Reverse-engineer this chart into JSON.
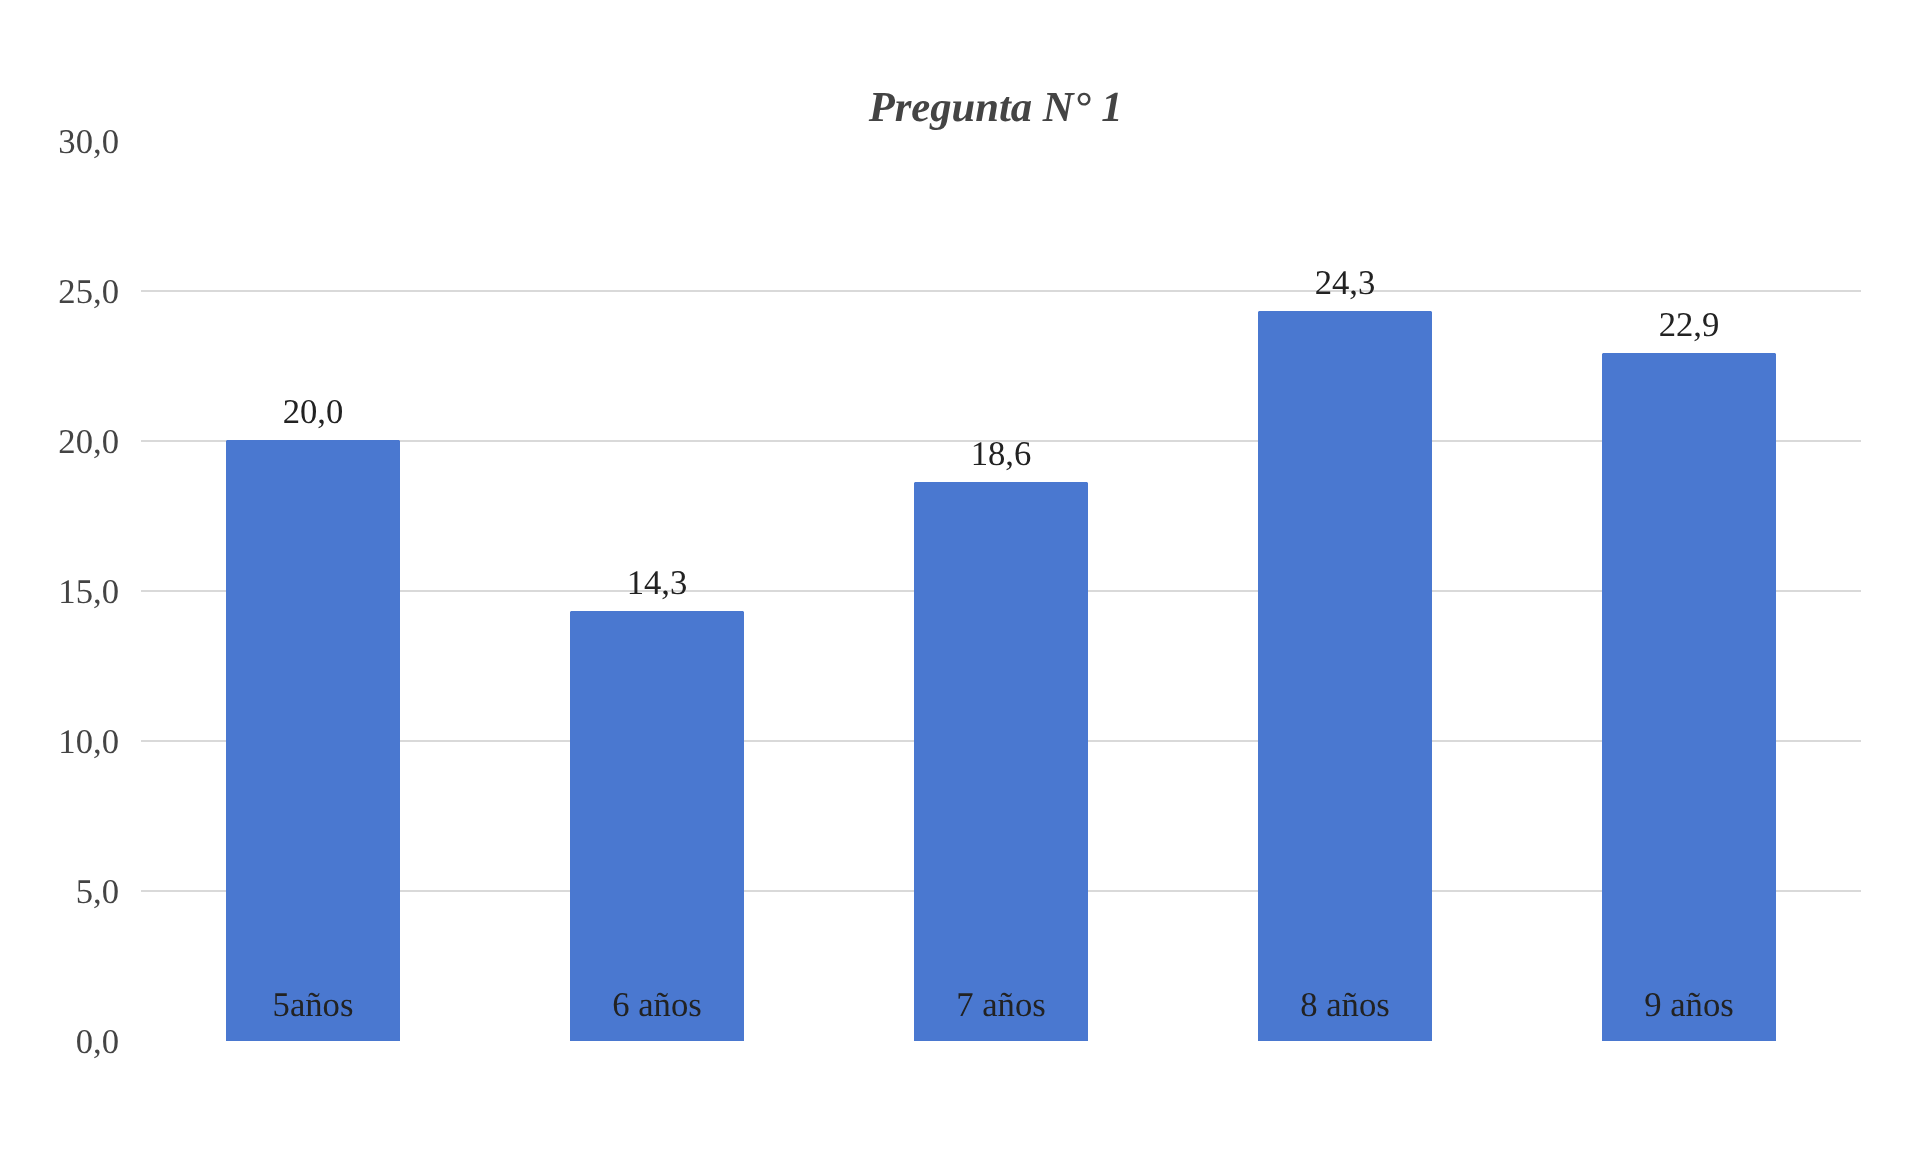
{
  "chart_data": {
    "type": "bar",
    "title": "Pregunta  N° 1",
    "categories": [
      "5años",
      "6 años",
      "7 años",
      "8 años",
      "9 años"
    ],
    "values": [
      20.0,
      14.3,
      18.6,
      24.3,
      22.9
    ],
    "value_labels": [
      "20,0",
      "14,3",
      "18,6",
      "24,3",
      "22,9"
    ],
    "color": "#4a78d0",
    "ylim": [
      0,
      30
    ],
    "yticks": [
      {
        "value": 0,
        "label": "0,0"
      },
      {
        "value": 5,
        "label": "5,0"
      },
      {
        "value": 10,
        "label": "10,0"
      },
      {
        "value": 15,
        "label": "15,0"
      },
      {
        "value": 20,
        "label": "20,0"
      },
      {
        "value": 25,
        "label": "25,0"
      },
      {
        "value": 30,
        "label": "30,0"
      }
    ],
    "grid": "y"
  }
}
